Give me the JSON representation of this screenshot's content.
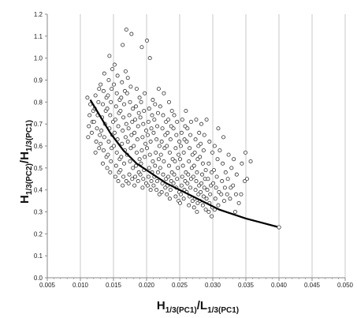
{
  "chart_data": {
    "type": "scatter",
    "xlabel": {
      "base": "H",
      "sub1": "1/3(PC1)",
      "slash": "/",
      "base2": "L",
      "sub2": "1/3(PC1)"
    },
    "ylabel": {
      "base": "H",
      "sub1": "1/3(PC2)",
      "slash": "/",
      "base2": "H",
      "sub2": "1/3(PC1)"
    },
    "xlim": [
      0.005,
      0.05
    ],
    "ylim": [
      0.0,
      1.2
    ],
    "x_ticks": [
      "0.005",
      "0.010",
      "0.015",
      "0.020",
      "0.025",
      "0.030",
      "0.035",
      "0.040",
      "0.045",
      "0.050"
    ],
    "y_ticks": [
      "0.0",
      "0.1",
      "0.2",
      "0.3",
      "0.4",
      "0.5",
      "0.6",
      "0.7",
      "0.8",
      "0.9",
      "1.0",
      "1.1",
      "1.2"
    ],
    "grid": {
      "vertical": true,
      "horizontal": false
    },
    "legend": "none",
    "colors": {
      "marker_edge": "#333333",
      "marker_fill": "#ffffff",
      "curve": "#000000",
      "grid": "#c8c8c8",
      "axis": "#888888"
    },
    "series": [
      {
        "type": "scatter",
        "points_per_x": [
          {
            "x": 0.0115,
            "y": [
              0.82,
              0.79,
              0.76,
              0.74,
              0.71,
              0.69,
              0.66,
              0.64
            ]
          },
          {
            "x": 0.0125,
            "y": [
              0.86,
              0.83,
              0.8,
              0.77,
              0.74,
              0.71,
              0.68,
              0.65,
              0.62,
              0.59,
              0.57
            ]
          },
          {
            "x": 0.0135,
            "y": [
              0.93,
              0.88,
              0.85,
              0.82,
              0.79,
              0.76,
              0.73,
              0.7,
              0.67,
              0.64,
              0.61,
              0.58,
              0.55,
              0.52
            ]
          },
          {
            "x": 0.0145,
            "y": [
              1.01,
              0.95,
              0.9,
              0.86,
              0.83,
              0.8,
              0.77,
              0.74,
              0.71,
              0.68,
              0.65,
              0.62,
              0.59,
              0.56,
              0.53,
              0.5,
              0.48
            ]
          },
          {
            "x": 0.0155,
            "y": [
              0.97,
              0.92,
              0.88,
              0.84,
              0.81,
              0.78,
              0.75,
              0.72,
              0.69,
              0.66,
              0.63,
              0.6,
              0.57,
              0.54,
              0.51,
              0.48,
              0.46,
              0.44
            ]
          },
          {
            "x": 0.0165,
            "y": [
              1.13,
              1.06,
              0.94,
              0.89,
              0.85,
              0.82,
              0.79,
              0.76,
              0.73,
              0.7,
              0.67,
              0.64,
              0.61,
              0.58,
              0.55,
              0.52,
              0.49,
              0.46,
              0.44,
              0.42
            ]
          },
          {
            "x": 0.0175,
            "y": [
              1.11,
              0.91,
              0.87,
              0.84,
              0.8,
              0.77,
              0.74,
              0.71,
              0.68,
              0.65,
              0.62,
              0.59,
              0.56,
              0.53,
              0.5,
              0.47,
              0.45,
              0.43
            ]
          },
          {
            "x": 0.0185,
            "y": [
              0.86,
              0.82,
              0.78,
              0.75,
              0.72,
              0.69,
              0.66,
              0.63,
              0.6,
              0.57,
              0.54,
              0.51,
              0.48,
              0.46,
              0.44,
              0.42
            ]
          },
          {
            "x": 0.0195,
            "y": [
              1.05,
              0.84,
              0.8,
              0.76,
              0.73,
              0.7,
              0.67,
              0.64,
              0.61,
              0.58,
              0.55,
              0.52,
              0.49,
              0.47,
              0.45,
              0.43,
              0.41
            ]
          },
          {
            "x": 0.0205,
            "y": [
              1.08,
              1.0,
              0.81,
              0.77,
              0.74,
              0.71,
              0.68,
              0.65,
              0.62,
              0.59,
              0.56,
              0.53,
              0.5,
              0.48,
              0.46,
              0.44,
              0.42,
              0.4
            ]
          },
          {
            "x": 0.0215,
            "y": [
              0.86,
              0.79,
              0.75,
              0.72,
              0.69,
              0.66,
              0.63,
              0.6,
              0.57,
              0.54,
              0.51,
              0.48,
              0.46,
              0.44,
              0.42,
              0.4,
              0.38
            ]
          },
          {
            "x": 0.0225,
            "y": [
              0.84,
              0.78,
              0.74,
              0.71,
              0.68,
              0.65,
              0.62,
              0.59,
              0.56,
              0.53,
              0.5,
              0.47,
              0.45,
              0.43,
              0.41,
              0.39
            ]
          },
          {
            "x": 0.0235,
            "y": [
              0.8,
              0.76,
              0.72,
              0.69,
              0.66,
              0.63,
              0.6,
              0.57,
              0.54,
              0.51,
              0.48,
              0.46,
              0.44,
              0.42,
              0.4,
              0.38,
              0.36
            ]
          },
          {
            "x": 0.0245,
            "y": [
              0.74,
              0.71,
              0.68,
              0.65,
              0.62,
              0.59,
              0.56,
              0.53,
              0.5,
              0.47,
              0.45,
              0.43,
              0.41,
              0.39,
              0.37,
              0.35
            ]
          },
          {
            "x": 0.0255,
            "y": [
              0.76,
              0.72,
              0.69,
              0.66,
              0.63,
              0.6,
              0.57,
              0.54,
              0.51,
              0.48,
              0.46,
              0.44,
              0.42,
              0.4,
              0.38,
              0.36,
              0.34
            ]
          },
          {
            "x": 0.0265,
            "y": [
              0.71,
              0.68,
              0.65,
              0.62,
              0.59,
              0.56,
              0.53,
              0.5,
              0.47,
              0.45,
              0.43,
              0.41,
              0.39,
              0.37,
              0.35,
              0.33
            ]
          },
          {
            "x": 0.0275,
            "y": [
              0.72,
              0.66,
              0.63,
              0.6,
              0.57,
              0.54,
              0.51,
              0.48,
              0.46,
              0.44,
              0.42,
              0.4,
              0.38,
              0.36,
              0.34,
              0.32,
              0.3
            ]
          },
          {
            "x": 0.0285,
            "y": [
              0.7,
              0.65,
              0.61,
              0.58,
              0.55,
              0.52,
              0.49,
              0.47,
              0.45,
              0.43,
              0.41,
              0.39,
              0.37,
              0.35,
              0.33,
              0.31
            ]
          },
          {
            "x": 0.0295,
            "y": [
              0.72,
              0.62,
              0.57,
              0.52,
              0.48,
              0.45,
              0.42,
              0.4,
              0.38,
              0.36,
              0.34,
              0.32,
              0.3,
              0.28
            ]
          },
          {
            "x": 0.0305,
            "y": [
              0.68,
              0.6,
              0.54,
              0.49,
              0.46,
              0.43,
              0.41,
              0.39,
              0.36,
              0.33,
              0.31
            ]
          },
          {
            "x": 0.0315,
            "y": [
              0.64,
              0.58,
              0.52,
              0.48,
              0.44,
              0.41,
              0.38,
              0.35
            ]
          },
          {
            "x": 0.0325,
            "y": [
              0.56,
              0.5,
              0.45,
              0.41,
              0.38,
              0.36
            ]
          },
          {
            "x": 0.0335,
            "y": [
              0.54,
              0.47,
              0.42,
              0.38,
              0.34,
              0.3
            ]
          },
          {
            "x": 0.0345,
            "y": [
              0.57,
              0.52,
              0.44,
              0.38
            ]
          },
          {
            "x": 0.0355,
            "y": [
              0.53,
              0.45
            ]
          }
        ]
      },
      {
        "type": "line",
        "points": [
          [
            0.0115,
            0.81
          ],
          [
            0.0125,
            0.76
          ],
          [
            0.0135,
            0.71
          ],
          [
            0.0145,
            0.66
          ],
          [
            0.0155,
            0.62
          ],
          [
            0.0165,
            0.58
          ],
          [
            0.0175,
            0.55
          ],
          [
            0.0185,
            0.52
          ],
          [
            0.02,
            0.49
          ],
          [
            0.0215,
            0.46
          ],
          [
            0.023,
            0.43
          ],
          [
            0.025,
            0.4
          ],
          [
            0.027,
            0.37
          ],
          [
            0.029,
            0.34
          ],
          [
            0.031,
            0.31
          ],
          [
            0.033,
            0.29
          ],
          [
            0.035,
            0.27
          ],
          [
            0.0375,
            0.25
          ],
          [
            0.04,
            0.23
          ]
        ]
      }
    ]
  }
}
